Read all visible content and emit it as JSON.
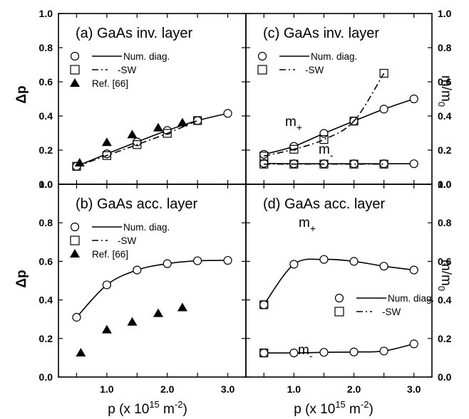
{
  "figure": {
    "left_ylabel": "Δp",
    "right_ylabel_main": "m/m",
    "right_ylabel_sub": "0",
    "xlabel_main": "p (x 10",
    "xlabel_exp": "15",
    "xlabel_unit": " m",
    "xlabel_unit_exp": "-2",
    "xlabel_close": ")"
  },
  "chart_data": [
    {
      "id": "a",
      "type": "scatter",
      "title": "(a) GaAs inv. layer",
      "xlim": [
        0.2,
        3.3
      ],
      "ylim": [
        0.0,
        1.0
      ],
      "x_ticks": [
        "1.0",
        "2.0",
        "3.0"
      ],
      "y_ticks": [
        "0.0",
        "0.2",
        "0.4",
        "0.6",
        "0.8",
        "1.0"
      ],
      "legend": [
        "Num. diag.",
        "-SW",
        "Ref. [66]"
      ],
      "series": [
        {
          "name": "Num. diag.",
          "style": "circle-solid",
          "x": [
            0.5,
            1.0,
            1.5,
            2.0,
            2.5,
            3.0
          ],
          "y": [
            0.105,
            0.178,
            0.248,
            0.315,
            0.373,
            0.415
          ]
        },
        {
          "name": "-SW",
          "style": "square-dashdot",
          "x": [
            0.5,
            1.0,
            1.5,
            2.0,
            2.5
          ],
          "y": [
            0.105,
            0.168,
            0.232,
            0.298,
            0.373
          ]
        },
        {
          "name": "Ref. [66]",
          "style": "triangle",
          "x": [
            0.55,
            1.0,
            1.42,
            1.85,
            2.25
          ],
          "y": [
            0.125,
            0.245,
            0.29,
            0.33,
            0.36
          ]
        }
      ]
    },
    {
      "id": "b",
      "type": "scatter",
      "title": "(b) GaAs acc. layer",
      "xlim": [
        0.2,
        3.3
      ],
      "ylim": [
        0.0,
        1.0
      ],
      "x_ticks": [
        "1.0",
        "2.0",
        "3.0"
      ],
      "y_ticks": [
        "0.0",
        "0.2",
        "0.4",
        "0.6",
        "0.8",
        "1.0"
      ],
      "legend": [
        "Num. diag.",
        "-SW",
        "Ref. [66]"
      ],
      "series": [
        {
          "name": "Num. diag.",
          "style": "circle-solid",
          "x": [
            0.5,
            1.0,
            1.5,
            2.0,
            2.5,
            3.0
          ],
          "y": [
            0.31,
            0.478,
            0.555,
            0.588,
            0.603,
            0.605
          ]
        },
        {
          "name": "Ref. [66]",
          "style": "triangle",
          "x": [
            0.57,
            1.0,
            1.42,
            1.85,
            2.25
          ],
          "y": [
            0.125,
            0.245,
            0.285,
            0.33,
            0.36
          ]
        }
      ]
    },
    {
      "id": "c",
      "type": "scatter",
      "title": "(c) GaAs inv. layer",
      "xlim": [
        0.2,
        3.3
      ],
      "ylim": [
        0.0,
        1.0
      ],
      "x_ticks": [
        "1.0",
        "2.0",
        "3.0"
      ],
      "y_ticks": [
        "0.0",
        "0.2",
        "0.4",
        "0.6",
        "0.8",
        "1.0"
      ],
      "legend": [
        "Num. diag.",
        "-SW"
      ],
      "labels": [
        {
          "text": "m",
          "sub": "+"
        },
        {
          "text": "m",
          "sub": "-"
        }
      ],
      "series": [
        {
          "name": "m+ Num. diag.",
          "style": "circle-solid",
          "x": [
            0.5,
            1.0,
            1.5,
            2.0,
            2.5,
            3.0
          ],
          "y": [
            0.175,
            0.222,
            0.298,
            0.37,
            0.44,
            0.5
          ]
        },
        {
          "name": "m+ -SW",
          "style": "square-dashdot",
          "x": [
            0.5,
            1.0,
            1.5,
            2.0,
            2.5
          ],
          "y": [
            0.165,
            0.205,
            0.262,
            0.37,
            0.65
          ]
        },
        {
          "name": "m- Num. diag.",
          "style": "circle-solid",
          "x": [
            0.5,
            1.0,
            1.5,
            2.0,
            2.5,
            3.0
          ],
          "y": [
            0.122,
            0.12,
            0.12,
            0.12,
            0.12,
            0.12
          ]
        },
        {
          "name": "m- -SW",
          "style": "square-dashdot",
          "x": [
            0.5,
            1.0,
            1.5,
            2.0,
            2.5
          ],
          "y": [
            0.118,
            0.118,
            0.118,
            0.118,
            0.118
          ]
        }
      ]
    },
    {
      "id": "d",
      "type": "scatter",
      "title": "(d) GaAs acc. layer",
      "xlim": [
        0.2,
        3.3
      ],
      "ylim": [
        0.0,
        1.0
      ],
      "x_ticks": [
        "1.0",
        "2.0",
        "3.0"
      ],
      "y_ticks": [
        "0.0",
        "0.2",
        "0.4",
        "0.6",
        "0.8",
        "1.0"
      ],
      "legend": [
        "Num. diag.",
        "-SW"
      ],
      "labels": [
        {
          "text": "m",
          "sub": "+"
        },
        {
          "text": "m",
          "sub": "-"
        }
      ],
      "series": [
        {
          "name": "m+ Num. diag.",
          "style": "circle-solid",
          "x": [
            0.5,
            1.0,
            1.5,
            2.0,
            2.5,
            3.0
          ],
          "y": [
            0.375,
            0.585,
            0.61,
            0.6,
            0.575,
            0.555
          ]
        },
        {
          "name": "m+ -SW",
          "style": "square",
          "x": [
            0.5
          ],
          "y": [
            0.375
          ]
        },
        {
          "name": "m- Num. diag.",
          "style": "circle-solid",
          "x": [
            0.5,
            1.0,
            1.5,
            2.0,
            2.5,
            3.0
          ],
          "y": [
            0.125,
            0.125,
            0.128,
            0.13,
            0.135,
            0.172
          ]
        },
        {
          "name": "m- -SW",
          "style": "square",
          "x": [
            0.5
          ],
          "y": [
            0.125
          ]
        }
      ]
    }
  ]
}
